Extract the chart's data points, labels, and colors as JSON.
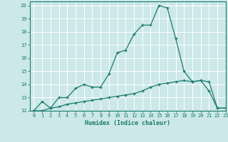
{
  "xlabel": "Humidex (Indice chaleur)",
  "background_color": "#cce8e8",
  "grid_color": "#e0f0f0",
  "line_color": "#1a7a6e",
  "xlim": [
    -0.5,
    23
  ],
  "ylim": [
    12,
    20.3
  ],
  "xticks": [
    0,
    1,
    2,
    3,
    4,
    5,
    6,
    7,
    8,
    9,
    10,
    11,
    12,
    13,
    14,
    15,
    16,
    17,
    18,
    19,
    20,
    21,
    22,
    23
  ],
  "yticks": [
    12,
    13,
    14,
    15,
    16,
    17,
    18,
    19,
    20
  ],
  "series1_x": [
    0,
    1,
    2,
    3,
    4,
    5,
    6,
    7,
    8,
    9,
    10,
    11,
    12,
    13,
    14,
    15,
    16,
    17,
    18,
    19,
    20,
    21,
    22,
    23
  ],
  "series1_y": [
    12.0,
    12.7,
    12.2,
    13.0,
    13.0,
    13.7,
    14.0,
    13.8,
    13.8,
    14.8,
    16.4,
    16.6,
    17.8,
    18.5,
    18.5,
    20.0,
    19.8,
    17.5,
    15.0,
    14.2,
    14.3,
    13.5,
    12.2,
    12.2
  ],
  "series2_x": [
    0,
    1,
    2,
    3,
    4,
    5,
    6,
    7,
    8,
    9,
    10,
    11,
    12,
    13,
    14,
    15,
    16,
    17,
    18,
    19,
    20,
    21,
    22,
    23
  ],
  "series2_y": [
    12.0,
    12.0,
    12.2,
    12.3,
    12.5,
    12.6,
    12.7,
    12.8,
    12.9,
    13.0,
    13.1,
    13.2,
    13.3,
    13.5,
    13.8,
    14.0,
    14.1,
    14.2,
    14.3,
    14.2,
    14.3,
    14.2,
    12.2,
    12.2
  ]
}
